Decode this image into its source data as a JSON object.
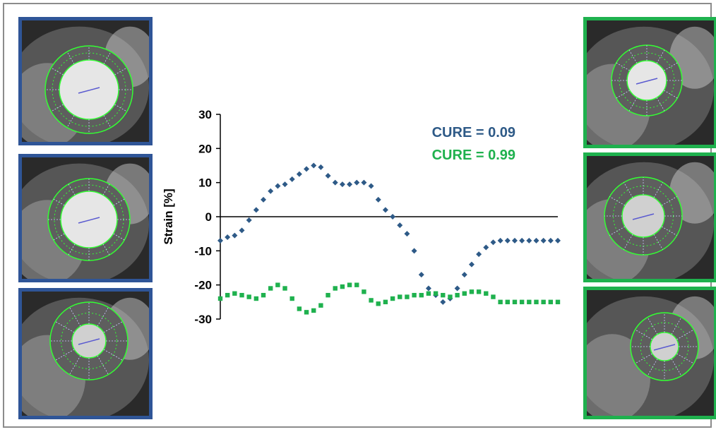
{
  "colors": {
    "blue": "#2e5a87",
    "green": "#1fb14e",
    "blue_border": "#2f5597",
    "green_border": "#1fb14e",
    "contour": "#33ff33"
  },
  "images": {
    "left": [
      {
        "name": "short-axis-cine-basal"
      },
      {
        "name": "short-axis-cine-mid"
      },
      {
        "name": "short-axis-cine-apical"
      }
    ],
    "right": [
      {
        "name": "short-axis-cine-basal"
      },
      {
        "name": "short-axis-cine-mid"
      },
      {
        "name": "short-axis-cine-apical"
      }
    ]
  },
  "chart_data": {
    "type": "scatter",
    "title": "",
    "ylabel": "Strain [%]",
    "xlabel": "",
    "ylim": [
      -30,
      30
    ],
    "yticks": [
      "30",
      "20",
      "10",
      "0",
      "-10",
      "-20",
      "-30"
    ],
    "grid": false,
    "annotations": [
      {
        "text": "CURE = 0.09",
        "series": "blue"
      },
      {
        "text": "CURE = 0.99",
        "series": "green"
      }
    ],
    "series": [
      {
        "color": "#2e5a87",
        "marker": "diamond",
        "x": [
          1,
          2,
          3,
          4,
          5,
          6,
          7,
          8,
          9,
          10,
          11,
          12,
          13,
          14,
          15,
          16,
          17,
          18,
          19,
          20,
          21,
          22,
          23,
          24,
          25,
          26,
          27,
          28,
          29,
          30,
          31,
          32,
          33,
          34,
          35,
          36,
          37,
          38,
          39,
          40,
          41,
          42,
          43,
          44,
          45,
          46,
          47,
          48
        ],
        "values": [
          -7,
          -6,
          -5.5,
          -4,
          -1,
          2,
          5,
          7.5,
          9,
          9.5,
          11,
          12.5,
          14,
          15,
          14.5,
          12,
          10,
          9.5,
          9.5,
          10,
          10,
          9,
          5,
          2,
          0,
          -2.5,
          -5,
          -10,
          -17,
          -21,
          -23,
          -25,
          -24,
          -21,
          -17,
          -14,
          -11,
          -9,
          -7.5,
          -7,
          -7,
          -7,
          -7,
          -7,
          -7,
          -7,
          -7,
          -7
        ]
      },
      {
        "color": "#1fb14e",
        "marker": "square",
        "x": [
          1,
          2,
          3,
          4,
          5,
          6,
          7,
          8,
          9,
          10,
          11,
          12,
          13,
          14,
          15,
          16,
          17,
          18,
          19,
          20,
          21,
          22,
          23,
          24,
          25,
          26,
          27,
          28,
          29,
          30,
          31,
          32,
          33,
          34,
          35,
          36,
          37,
          38,
          39,
          40,
          41,
          42,
          43,
          44,
          45,
          46,
          47,
          48
        ],
        "values": [
          -24,
          -23,
          -22.5,
          -23,
          -23.5,
          -24,
          -23,
          -21,
          -20,
          -21,
          -24,
          -27,
          -28,
          -27.5,
          -26,
          -23,
          -21,
          -20.5,
          -20,
          -20,
          -22,
          -24.5,
          -25.5,
          -25,
          -24,
          -23.5,
          -23.5,
          -23,
          -23,
          -22.5,
          -22.5,
          -23,
          -23.5,
          -23,
          -22.5,
          -22,
          -22,
          -22.5,
          -23.5,
          -25,
          -25,
          -25,
          -25,
          -25,
          -25,
          -25,
          -25,
          -25
        ]
      }
    ]
  }
}
